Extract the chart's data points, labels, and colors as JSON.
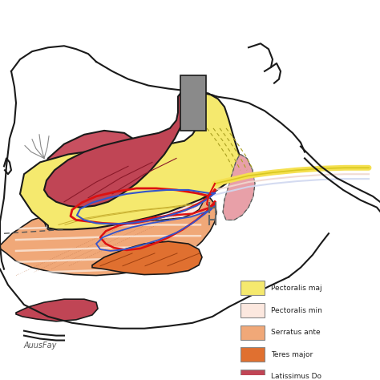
{
  "background_color": "#ffffff",
  "outline_color": "#1a1a1a",
  "legend_items": [
    {
      "label": "Pectoralis maj",
      "color": "#f5e96e"
    },
    {
      "label": "Pectoralis min",
      "color": "#fce8df"
    },
    {
      "label": "Serratus ante",
      "color": "#f0a878"
    },
    {
      "label": "Teres major",
      "color": "#e07030"
    },
    {
      "label": "Latissimus Do",
      "color": "#c04555"
    }
  ],
  "dpi": 100,
  "figsize": [
    4.74,
    4.74
  ]
}
